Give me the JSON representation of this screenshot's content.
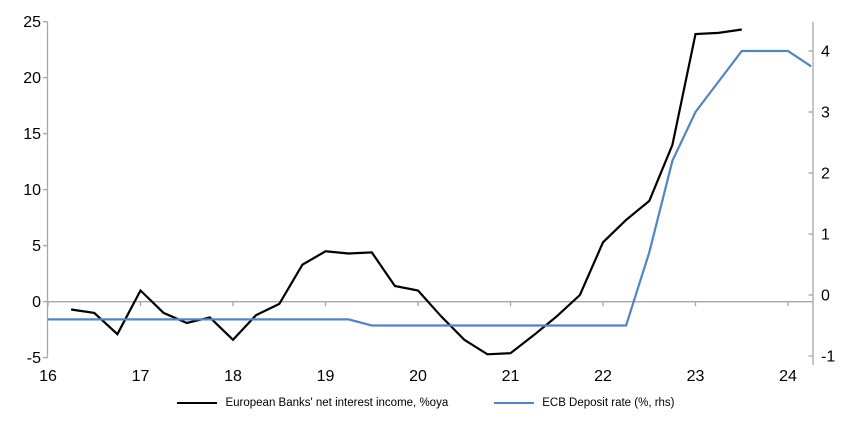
{
  "chart_data": {
    "type": "line",
    "title": "",
    "x_axis": {
      "ticks": [
        16,
        17,
        18,
        19,
        20,
        21,
        22,
        23,
        24
      ],
      "range": [
        16,
        24.3
      ]
    },
    "left_axis": {
      "ticks": [
        25,
        20,
        15,
        10,
        5,
        0,
        -5
      ],
      "range": [
        -5,
        25
      ],
      "label": ""
    },
    "right_axis": {
      "ticks": [
        4,
        3,
        2,
        1,
        0,
        -1
      ],
      "range": [
        -1.1,
        4.5
      ],
      "label": ""
    },
    "grid": "zero-line-only",
    "legend_position": "bottom",
    "colors": {
      "axis": "#A6A6A6",
      "zero_line": "#A6A6A6",
      "text": "#000000"
    },
    "series": [
      {
        "name": "European Banks' net interest income, %oya",
        "axis": "left",
        "color": "#000000",
        "x": [
          16.25,
          16.5,
          16.75,
          17.0,
          17.25,
          17.5,
          17.75,
          18.0,
          18.25,
          18.5,
          18.75,
          19.0,
          19.25,
          19.5,
          19.75,
          20.0,
          20.25,
          20.5,
          20.75,
          21.0,
          21.25,
          21.5,
          21.75,
          22.0,
          22.25,
          22.5,
          22.75,
          23.0,
          23.25,
          23.5
        ],
        "y": [
          -0.7,
          -1.0,
          -2.9,
          1.0,
          -1.0,
          -1.9,
          -1.4,
          -3.4,
          -1.2,
          -0.2,
          3.3,
          4.5,
          4.3,
          4.4,
          1.4,
          1.0,
          -1.3,
          -3.4,
          -4.7,
          -4.6,
          -3.0,
          -1.3,
          0.6,
          5.3,
          7.3,
          9.0,
          14.0,
          23.9,
          24.0,
          24.3
        ]
      },
      {
        "name": "ECB Deposit rate (%, rhs)",
        "axis": "right",
        "color": "#5185C5",
        "x": [
          16.0,
          19.25,
          19.5,
          22.25,
          22.5,
          22.75,
          23.0,
          23.25,
          23.5,
          24.0,
          24.25
        ],
        "y": [
          -0.4,
          -0.4,
          -0.5,
          -0.5,
          0.7,
          2.2,
          3.0,
          3.5,
          4.0,
          4.0,
          3.75
        ]
      }
    ]
  }
}
